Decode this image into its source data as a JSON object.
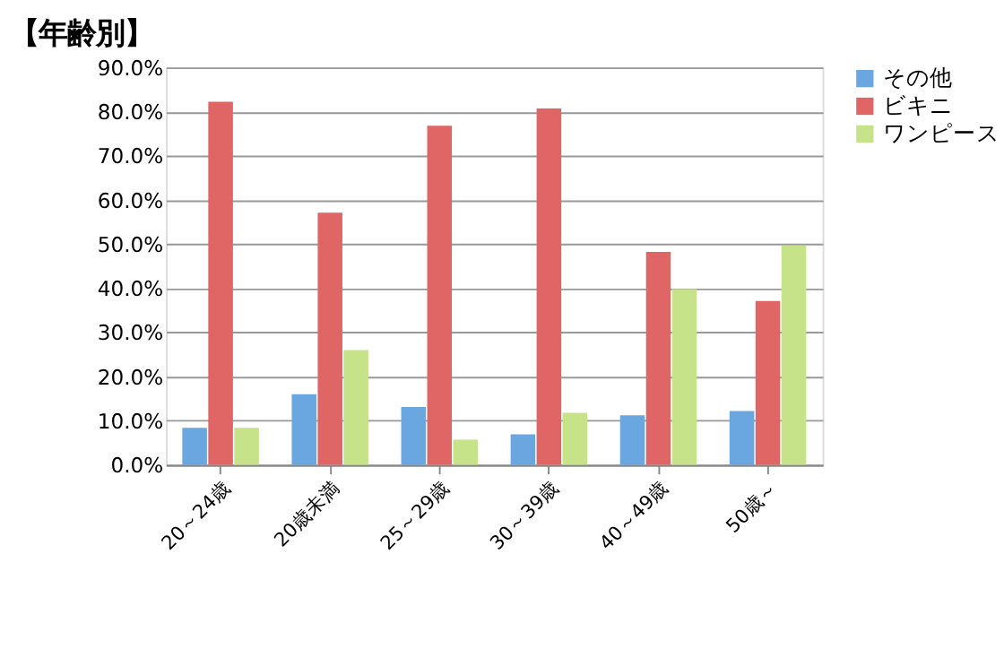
{
  "chart_data": {
    "type": "bar",
    "title": "【年齢別】",
    "categories": [
      "20～24歳",
      "20歳未満",
      "25～29歳",
      "30～39歳",
      "40～49歳",
      "50歳～"
    ],
    "series": [
      {
        "name": "その他",
        "color": "#6aa6e0",
        "values": [
          8.4,
          16.0,
          13.1,
          6.9,
          11.2,
          12.2
        ]
      },
      {
        "name": "ビキニ",
        "color": "#e06666",
        "values": [
          82.2,
          57.1,
          76.8,
          80.7,
          48.2,
          37.1
        ]
      },
      {
        "name": "ワンピース",
        "color": "#c6e38a",
        "values": [
          8.4,
          26.0,
          5.7,
          11.8,
          39.8,
          49.7
        ]
      }
    ],
    "ylim": [
      0,
      90
    ],
    "yticks": [
      {
        "value": 0,
        "label": "0.0%"
      },
      {
        "value": 10,
        "label": "10.0%"
      },
      {
        "value": 20,
        "label": "20.0%"
      },
      {
        "value": 30,
        "label": "30.0%"
      },
      {
        "value": 40,
        "label": "40.0%"
      },
      {
        "value": 50,
        "label": "50.0%"
      },
      {
        "value": 60,
        "label": "60.0%"
      },
      {
        "value": 70,
        "label": "70.0%"
      },
      {
        "value": 80,
        "label": "80.0%"
      },
      {
        "value": 90,
        "label": "90.0%"
      }
    ],
    "grid": "y",
    "legend": "right"
  }
}
